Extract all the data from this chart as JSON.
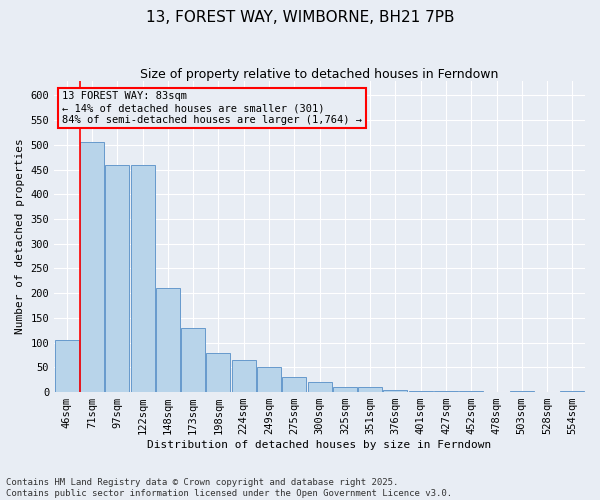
{
  "title": "13, FOREST WAY, WIMBORNE, BH21 7PB",
  "subtitle": "Size of property relative to detached houses in Ferndown",
  "xlabel": "Distribution of detached houses by size in Ferndown",
  "ylabel": "Number of detached properties",
  "footer_line1": "Contains HM Land Registry data © Crown copyright and database right 2025.",
  "footer_line2": "Contains public sector information licensed under the Open Government Licence v3.0.",
  "categories": [
    "46sqm",
    "71sqm",
    "97sqm",
    "122sqm",
    "148sqm",
    "173sqm",
    "198sqm",
    "224sqm",
    "249sqm",
    "275sqm",
    "300sqm",
    "325sqm",
    "351sqm",
    "376sqm",
    "401sqm",
    "427sqm",
    "452sqm",
    "478sqm",
    "503sqm",
    "528sqm",
    "554sqm"
  ],
  "values": [
    105,
    505,
    460,
    460,
    210,
    130,
    80,
    65,
    50,
    30,
    20,
    10,
    10,
    5,
    2,
    3,
    2,
    1,
    3,
    1,
    3
  ],
  "bar_color": "#b8d4ea",
  "bar_edge_color": "#6699cc",
  "bg_color": "#e8edf4",
  "grid_color": "#d0d8e8",
  "annotation_box_text": "13 FOREST WAY: 83sqm\n← 14% of detached houses are smaller (301)\n84% of semi-detached houses are larger (1,764) →",
  "ylim": [
    0,
    630
  ],
  "yticks": [
    0,
    50,
    100,
    150,
    200,
    250,
    300,
    350,
    400,
    450,
    500,
    550,
    600
  ],
  "title_fontsize": 11,
  "subtitle_fontsize": 9,
  "label_fontsize": 8,
  "tick_fontsize": 7.5,
  "footer_fontsize": 6.5,
  "annot_fontsize": 7.5
}
